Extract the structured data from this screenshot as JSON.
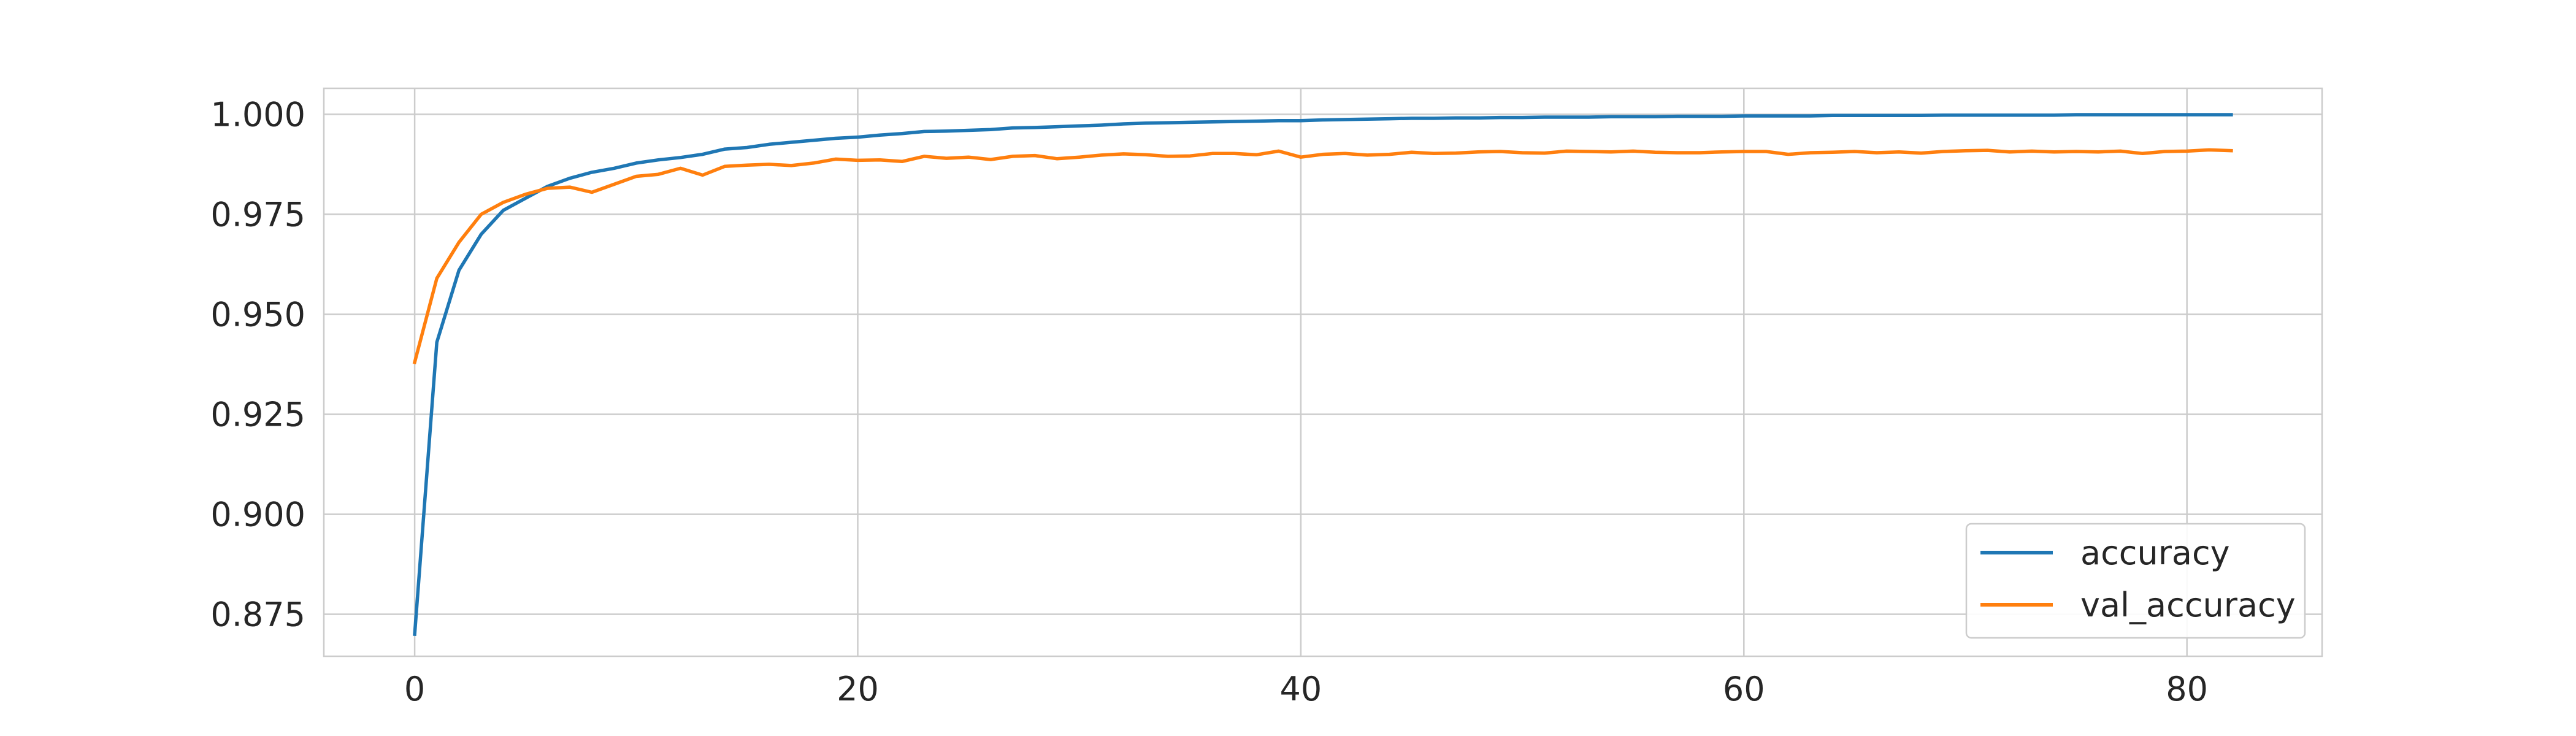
{
  "chart_data": {
    "type": "line",
    "title": "",
    "xlabel": "",
    "ylabel": "",
    "xlim": [
      -4.1,
      86.1
    ],
    "ylim": [
      0.8645,
      1.0065
    ],
    "xticks": [
      0,
      20,
      40,
      60,
      80
    ],
    "yticks": [
      0.875,
      0.9,
      0.925,
      0.95,
      0.975,
      1.0
    ],
    "xtick_labels": [
      "0",
      "20",
      "40",
      "60",
      "80"
    ],
    "ytick_labels": [
      "0.875",
      "0.900",
      "0.925",
      "0.950",
      "0.975",
      "1.000"
    ],
    "grid": true,
    "legend_position": "lower-right",
    "series": [
      {
        "name": "accuracy",
        "color": "#1f77b4",
        "x": [
          0,
          1,
          2,
          3,
          4,
          5,
          6,
          7,
          8,
          9,
          10,
          11,
          12,
          13,
          14,
          15,
          16,
          17,
          18,
          19,
          20,
          21,
          22,
          23,
          24,
          25,
          26,
          27,
          28,
          29,
          30,
          31,
          32,
          33,
          34,
          35,
          36,
          37,
          38,
          39,
          40,
          41,
          42,
          43,
          44,
          45,
          46,
          47,
          48,
          49,
          50,
          51,
          52,
          53,
          54,
          55,
          56,
          57,
          58,
          59,
          60,
          61,
          62,
          63,
          64,
          65,
          66,
          67,
          68,
          69,
          70,
          71,
          72,
          73,
          74,
          75,
          76,
          77,
          78,
          79,
          80,
          81,
          82
        ],
        "values": [
          0.87,
          0.943,
          0.961,
          0.97,
          0.976,
          0.979,
          0.982,
          0.984,
          0.9855,
          0.9865,
          0.9878,
          0.9886,
          0.9892,
          0.99,
          0.9913,
          0.9917,
          0.9925,
          0.993,
          0.9935,
          0.994,
          0.9943,
          0.9948,
          0.9952,
          0.9957,
          0.9958,
          0.996,
          0.9962,
          0.9966,
          0.9967,
          0.9969,
          0.9971,
          0.9973,
          0.9976,
          0.9978,
          0.9979,
          0.998,
          0.9981,
          0.9982,
          0.9983,
          0.9984,
          0.9984,
          0.9986,
          0.9987,
          0.9988,
          0.9989,
          0.999,
          0.999,
          0.9991,
          0.9991,
          0.9992,
          0.9992,
          0.9993,
          0.9993,
          0.9993,
          0.9994,
          0.9994,
          0.9994,
          0.9995,
          0.9995,
          0.9995,
          0.9996,
          0.9996,
          0.9996,
          0.9996,
          0.9997,
          0.9997,
          0.9997,
          0.9997,
          0.9997,
          0.9998,
          0.9998,
          0.9998,
          0.9998,
          0.9998,
          0.9998,
          0.9999,
          0.9999,
          0.9999,
          0.9999,
          0.9999,
          0.9999,
          0.9999,
          0.9999
        ]
      },
      {
        "name": "val_accuracy",
        "color": "#ff7f0e",
        "x": [
          0,
          1,
          2,
          3,
          4,
          5,
          6,
          7,
          8,
          9,
          10,
          11,
          12,
          13,
          14,
          15,
          16,
          17,
          18,
          19,
          20,
          21,
          22,
          23,
          24,
          25,
          26,
          27,
          28,
          29,
          30,
          31,
          32,
          33,
          34,
          35,
          36,
          37,
          38,
          39,
          40,
          41,
          42,
          43,
          44,
          45,
          46,
          47,
          48,
          49,
          50,
          51,
          52,
          53,
          54,
          55,
          56,
          57,
          58,
          59,
          60,
          61,
          62,
          63,
          64,
          65,
          66,
          67,
          68,
          69,
          70,
          71,
          72,
          73,
          74,
          75,
          76,
          77,
          78,
          79,
          80,
          81,
          82
        ],
        "values": [
          0.938,
          0.959,
          0.968,
          0.975,
          0.978,
          0.98,
          0.9815,
          0.9818,
          0.9805,
          0.9825,
          0.9845,
          0.985,
          0.9865,
          0.9848,
          0.987,
          0.9873,
          0.9875,
          0.9872,
          0.9878,
          0.9888,
          0.9885,
          0.9886,
          0.9882,
          0.9895,
          0.989,
          0.9893,
          0.9887,
          0.9895,
          0.9897,
          0.9889,
          0.9893,
          0.9898,
          0.9901,
          0.9899,
          0.9895,
          0.9896,
          0.9902,
          0.9902,
          0.9899,
          0.9908,
          0.9893,
          0.99,
          0.9902,
          0.9898,
          0.99,
          0.9905,
          0.9902,
          0.9903,
          0.9906,
          0.9907,
          0.9904,
          0.9903,
          0.9908,
          0.9907,
          0.9906,
          0.9908,
          0.9905,
          0.9904,
          0.9904,
          0.9906,
          0.9907,
          0.9907,
          0.99,
          0.9904,
          0.9905,
          0.9907,
          0.9904,
          0.9906,
          0.9903,
          0.9907,
          0.9909,
          0.991,
          0.9906,
          0.9908,
          0.9906,
          0.9907,
          0.9906,
          0.9908,
          0.9902,
          0.9907,
          0.9908,
          0.9911,
          0.9909
        ]
      }
    ]
  }
}
